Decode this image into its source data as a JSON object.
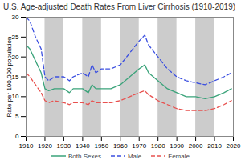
{
  "chart_data": {
    "type": "line",
    "title": "U.S. Age-adjusted Death Rates From Liver Cirrhosis (1910-2019)",
    "y_label": "Rate per 100,000 population",
    "x": [
      1910,
      1912,
      1915,
      1918,
      1920,
      1922,
      1925,
      1930,
      1933,
      1935,
      1940,
      1943,
      1945,
      1947,
      1950,
      1955,
      1960,
      1965,
      1970,
      1973,
      1975,
      1980,
      1985,
      1990,
      1995,
      2000,
      2005,
      2010,
      2015,
      2019
    ],
    "series": [
      {
        "name": "Both Sexes",
        "color": "#3aa37a",
        "line_style": "solid",
        "values": [
          23,
          22,
          19,
          16,
          12,
          11.5,
          12,
          12,
          11,
          12,
          12,
          11,
          13,
          12,
          12,
          12,
          13,
          15,
          17,
          18,
          16,
          14,
          12,
          11,
          10,
          10,
          9.5,
          10,
          11,
          12
        ]
      },
      {
        "name": "Male",
        "color": "#3b4fe0",
        "line_style": "dashed",
        "values": [
          30,
          29,
          25,
          22,
          15,
          14,
          15,
          15,
          14,
          15,
          16,
          15,
          18,
          16,
          17,
          17,
          18,
          21,
          24,
          25.5,
          23,
          20,
          17,
          15,
          14,
          13.5,
          13,
          14,
          15,
          16
        ]
      },
      {
        "name": "Female",
        "color": "#e8514f",
        "line_style": "dashed",
        "values": [
          16,
          15,
          13,
          11,
          9,
          8.5,
          9,
          8.5,
          8,
          8.5,
          8.5,
          8,
          9,
          8.5,
          8.5,
          8.5,
          9,
          10,
          11,
          11.5,
          10.5,
          9,
          8,
          7,
          6.5,
          6.5,
          6.5,
          7,
          8,
          9
        ]
      }
    ],
    "xlim": [
      1910,
      2020
    ],
    "xticks": [
      1910,
      1920,
      1930,
      1940,
      1950,
      1960,
      1970,
      1980,
      1990,
      2000,
      2010,
      2020
    ],
    "ylim": [
      0,
      30
    ],
    "yticks": [
      0,
      5,
      10,
      15,
      20,
      25,
      30
    ],
    "grid": false,
    "legend": "bottom"
  }
}
